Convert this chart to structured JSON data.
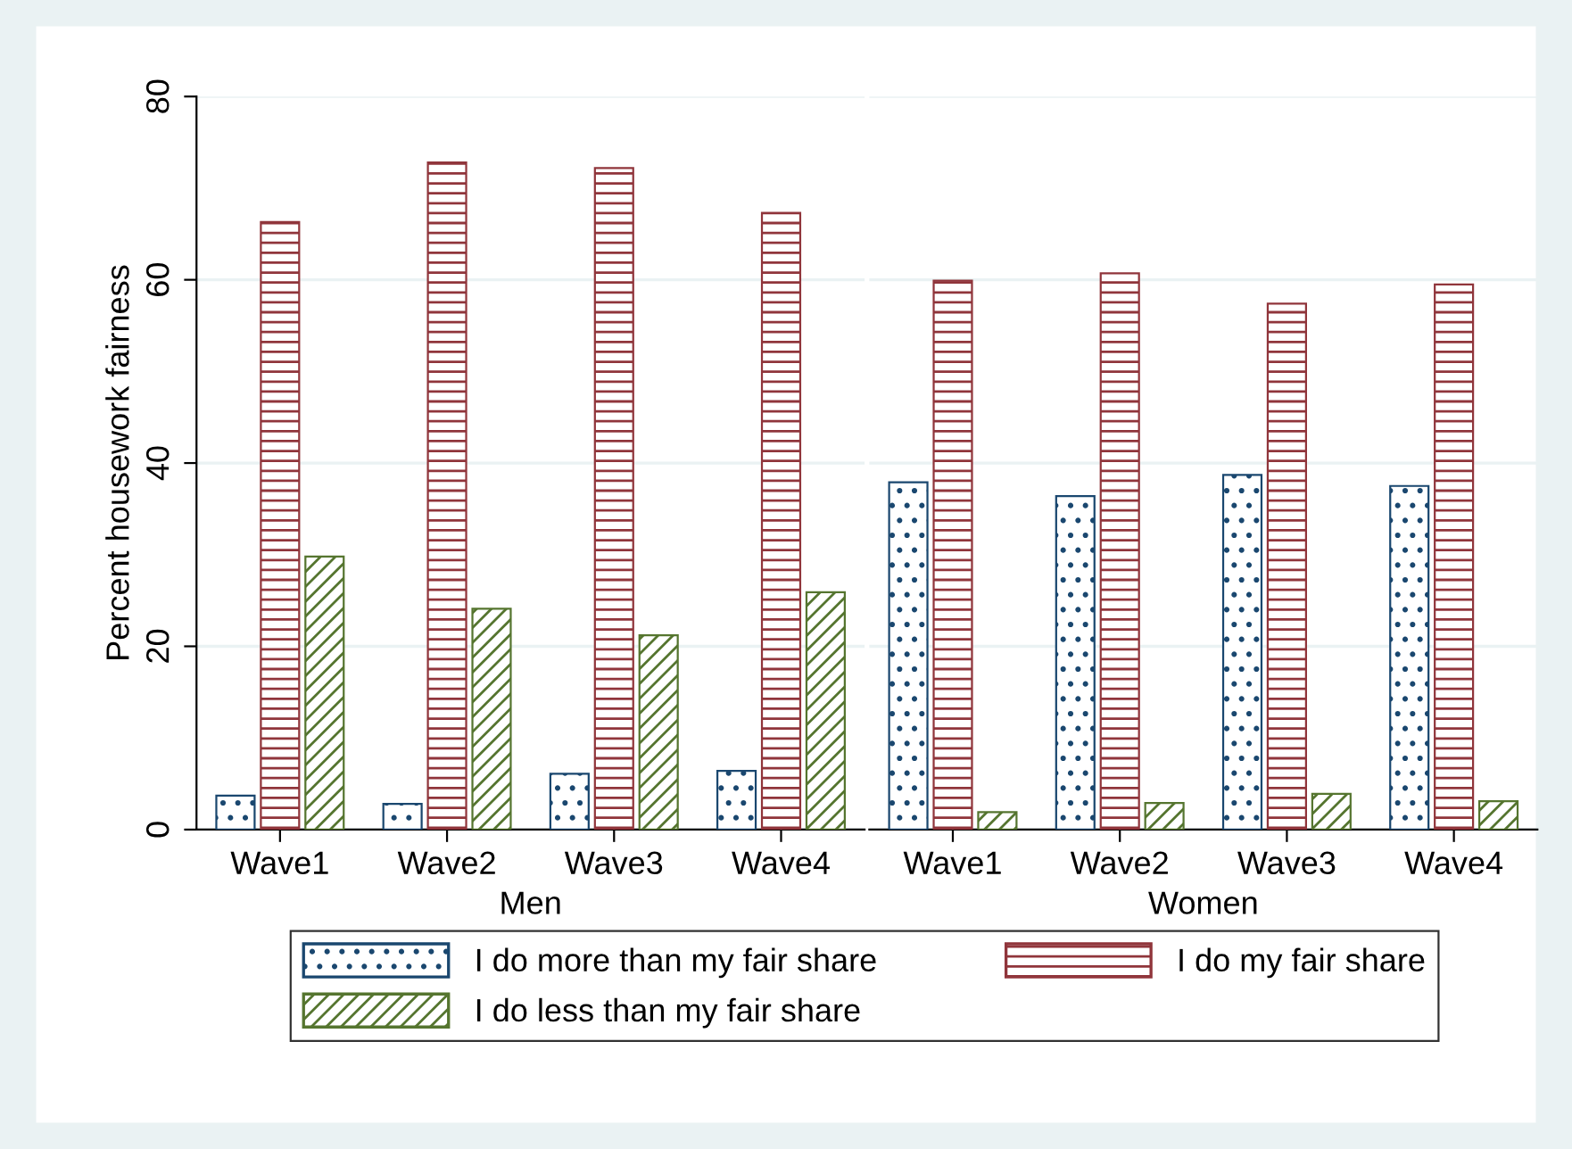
{
  "chart_data": [
    {
      "type": "bar",
      "categories": [
        "Wave1",
        "Wave2",
        "Wave3",
        "Wave4"
      ],
      "xlabel": "Men",
      "ylabel": "Percent housework fairness",
      "ylim": [
        0,
        80
      ],
      "yticks": [
        0,
        20,
        40,
        60,
        80
      ],
      "grid": "y",
      "legend": "bottom",
      "series": [
        {
          "name": "I do more than my fair share",
          "color": "#1a476f",
          "values": [
            3.7,
            2.8,
            6.1,
            6.4
          ]
        },
        {
          "name": "I do my fair share",
          "color": "#90353b",
          "values": [
            66.3,
            72.8,
            72.2,
            67.3
          ]
        },
        {
          "name": "I do less than my fair share",
          "color": "#55752f",
          "values": [
            29.8,
            24.1,
            21.2,
            25.9
          ]
        }
      ]
    },
    {
      "type": "bar",
      "categories": [
        "Wave1",
        "Wave2",
        "Wave3",
        "Wave4"
      ],
      "xlabel": "Women",
      "ylim": [
        0,
        80
      ],
      "yticks": [
        0,
        20,
        40,
        60,
        80
      ],
      "grid": "y",
      "tick_labels": "x",
      "series": [
        {
          "color": "#1a476f",
          "values": [
            37.9,
            36.4,
            38.7,
            37.5
          ]
        },
        {
          "color": "#90353b",
          "values": [
            59.9,
            60.7,
            57.4,
            59.5
          ]
        },
        {
          "color": "#55752f",
          "values": [
            1.9,
            2.9,
            3.9,
            3.1
          ]
        }
      ]
    }
  ]
}
